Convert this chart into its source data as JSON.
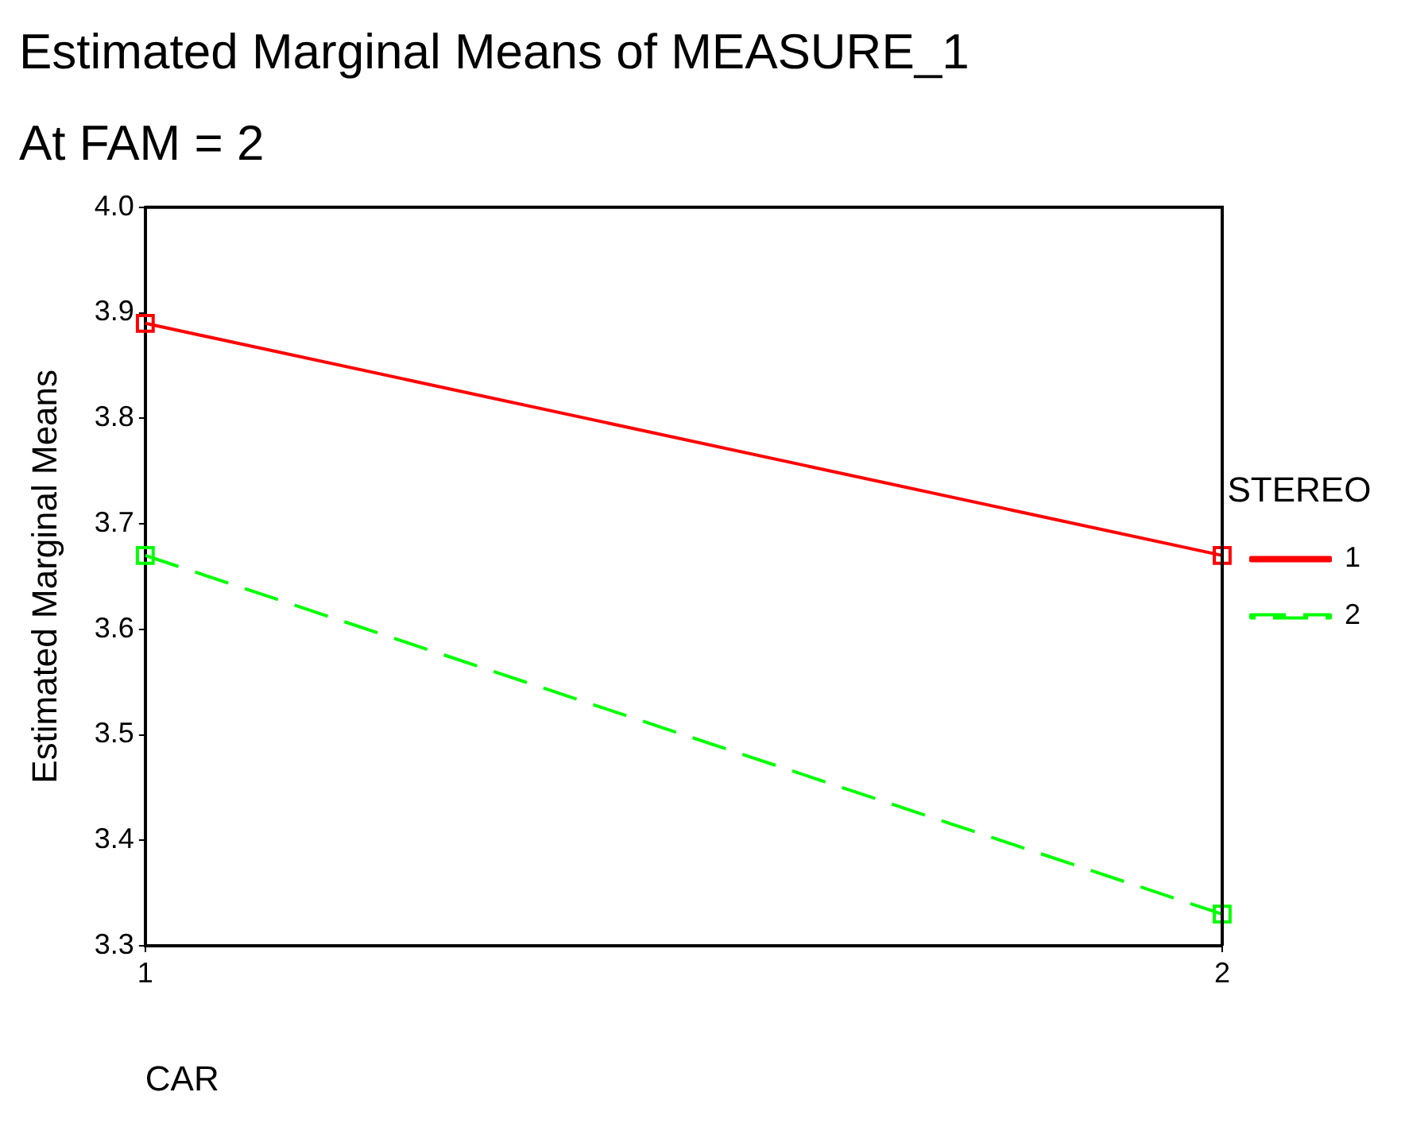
{
  "chart_data": {
    "type": "line",
    "title": "Estimated Marginal Means of MEASURE_1",
    "subtitle": "At FAM = 2",
    "xlabel": "CAR",
    "ylabel": "Estimated Marginal Means",
    "legend_title": "STEREO",
    "x": [
      1,
      2
    ],
    "xlim": [
      1,
      2
    ],
    "xticks": [
      1,
      2
    ],
    "ylim": [
      3.3,
      4.0
    ],
    "yticks": [
      3.3,
      3.4,
      3.5,
      3.6,
      3.7,
      3.8,
      3.9,
      {
        "value": 4,
        "label": "4.0"
      }
    ],
    "series": [
      {
        "name": "1",
        "color": "#ff0000",
        "values": [
          3.89,
          3.67
        ],
        "line_style": "solid"
      },
      {
        "name": "2",
        "color": "#00ff00",
        "values": [
          3.67,
          3.33
        ],
        "line_style": "dashed"
      }
    ],
    "marker": "square",
    "grid": false,
    "legend": "right"
  }
}
